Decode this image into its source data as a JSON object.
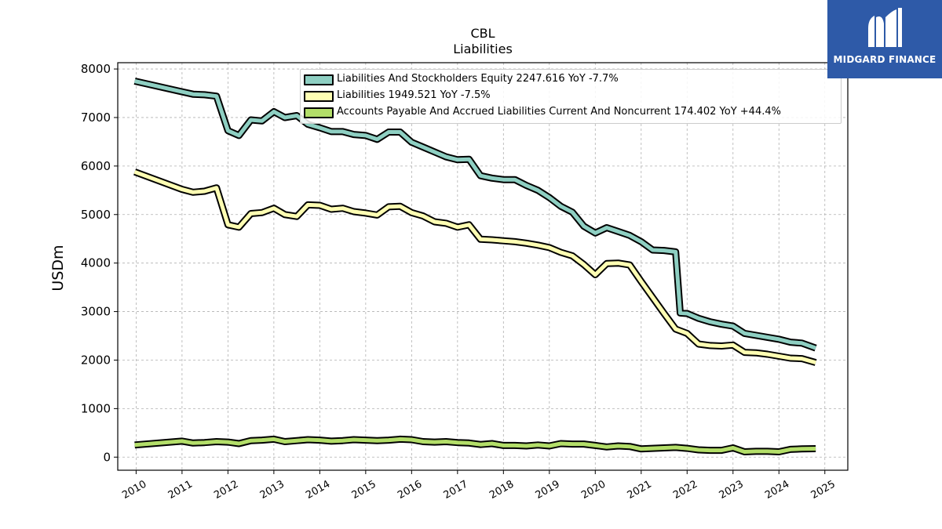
{
  "chart_data": {
    "type": "line",
    "title": "CBL",
    "subtitle": "Liabilities",
    "ylabel": "USDm",
    "xlabel": "",
    "xlim": [
      2009.6,
      2025.5
    ],
    "ylim": [
      -270,
      8130
    ],
    "x_ticks": [
      "2010",
      "2011",
      "2012",
      "2013",
      "2014",
      "2015",
      "2016",
      "2017",
      "2018",
      "2019",
      "2020",
      "2021",
      "2022",
      "2023",
      "2024",
      "2025"
    ],
    "y_ticks": [
      "0",
      "1000",
      "2000",
      "3000",
      "4000",
      "5000",
      "6000",
      "7000",
      "8000"
    ],
    "grid": true,
    "legend_position": "top-right",
    "series": [
      {
        "name": "Liabilities And Stockholders Equity  2247.616 YoY -7.7%",
        "color": "#8ecfc2",
        "points": [
          [
            2009.97,
            7750
          ],
          [
            2011.0,
            7530
          ],
          [
            2011.24,
            7480
          ],
          [
            2011.49,
            7470
          ],
          [
            2011.75,
            7440
          ],
          [
            2012.0,
            6730
          ],
          [
            2012.24,
            6630
          ],
          [
            2012.5,
            6950
          ],
          [
            2012.74,
            6930
          ],
          [
            2013.0,
            7120
          ],
          [
            2013.24,
            7000
          ],
          [
            2013.5,
            7040
          ],
          [
            2013.74,
            6860
          ],
          [
            2014.0,
            6790
          ],
          [
            2014.25,
            6710
          ],
          [
            2014.5,
            6710
          ],
          [
            2014.74,
            6650
          ],
          [
            2015.0,
            6630
          ],
          [
            2015.25,
            6550
          ],
          [
            2015.5,
            6700
          ],
          [
            2015.75,
            6700
          ],
          [
            2016.0,
            6490
          ],
          [
            2016.25,
            6390
          ],
          [
            2016.5,
            6290
          ],
          [
            2016.75,
            6190
          ],
          [
            2017.0,
            6130
          ],
          [
            2017.25,
            6140
          ],
          [
            2017.5,
            5800
          ],
          [
            2017.75,
            5750
          ],
          [
            2018.0,
            5720
          ],
          [
            2018.25,
            5720
          ],
          [
            2018.5,
            5600
          ],
          [
            2018.75,
            5500
          ],
          [
            2019.0,
            5350
          ],
          [
            2019.25,
            5170
          ],
          [
            2019.5,
            5050
          ],
          [
            2019.75,
            4760
          ],
          [
            2020.0,
            4620
          ],
          [
            2020.25,
            4730
          ],
          [
            2020.5,
            4650
          ],
          [
            2020.75,
            4570
          ],
          [
            2021.0,
            4440
          ],
          [
            2021.25,
            4270
          ],
          [
            2021.5,
            4260
          ],
          [
            2021.75,
            4230
          ],
          [
            2021.85,
            2970
          ],
          [
            2022.0,
            2960
          ],
          [
            2022.25,
            2860
          ],
          [
            2022.5,
            2790
          ],
          [
            2022.75,
            2740
          ],
          [
            2023.0,
            2700
          ],
          [
            2023.25,
            2550
          ],
          [
            2023.5,
            2510
          ],
          [
            2023.75,
            2470
          ],
          [
            2024.0,
            2430
          ],
          [
            2024.25,
            2370
          ],
          [
            2024.5,
            2350
          ],
          [
            2024.8,
            2248
          ]
        ]
      },
      {
        "name": "Liabilities  1949.521 YoY -7.5%",
        "color": "#ffffb3",
        "points": [
          [
            2009.97,
            5880
          ],
          [
            2011.0,
            5520
          ],
          [
            2011.24,
            5460
          ],
          [
            2011.49,
            5480
          ],
          [
            2011.75,
            5550
          ],
          [
            2012.0,
            4790
          ],
          [
            2012.24,
            4740
          ],
          [
            2012.5,
            5020
          ],
          [
            2012.74,
            5040
          ],
          [
            2013.0,
            5130
          ],
          [
            2013.24,
            5000
          ],
          [
            2013.5,
            4960
          ],
          [
            2013.74,
            5200
          ],
          [
            2014.0,
            5190
          ],
          [
            2014.25,
            5110
          ],
          [
            2014.5,
            5130
          ],
          [
            2014.74,
            5060
          ],
          [
            2015.0,
            5030
          ],
          [
            2015.25,
            4990
          ],
          [
            2015.5,
            5160
          ],
          [
            2015.75,
            5170
          ],
          [
            2016.0,
            5040
          ],
          [
            2016.25,
            4970
          ],
          [
            2016.5,
            4850
          ],
          [
            2016.75,
            4820
          ],
          [
            2017.0,
            4740
          ],
          [
            2017.25,
            4790
          ],
          [
            2017.5,
            4490
          ],
          [
            2017.75,
            4480
          ],
          [
            2018.0,
            4460
          ],
          [
            2018.25,
            4440
          ],
          [
            2018.5,
            4410
          ],
          [
            2018.75,
            4370
          ],
          [
            2019.0,
            4320
          ],
          [
            2019.25,
            4220
          ],
          [
            2019.5,
            4150
          ],
          [
            2019.75,
            3970
          ],
          [
            2020.0,
            3760
          ],
          [
            2020.25,
            3990
          ],
          [
            2020.5,
            4000
          ],
          [
            2020.75,
            3960
          ],
          [
            2021.0,
            3620
          ],
          [
            2021.25,
            3290
          ],
          [
            2021.5,
            2960
          ],
          [
            2021.75,
            2640
          ],
          [
            2022.0,
            2550
          ],
          [
            2022.25,
            2330
          ],
          [
            2022.5,
            2300
          ],
          [
            2022.75,
            2290
          ],
          [
            2023.0,
            2310
          ],
          [
            2023.25,
            2160
          ],
          [
            2023.5,
            2150
          ],
          [
            2023.75,
            2120
          ],
          [
            2024.0,
            2080
          ],
          [
            2024.25,
            2040
          ],
          [
            2024.5,
            2030
          ],
          [
            2024.8,
            1950
          ]
        ]
      },
      {
        "name": "Accounts Payable And Accrued Liabilities Current And Noncurrent  174.402 YoY +44.4%",
        "color": "#b3de69",
        "points": [
          [
            2009.97,
            250
          ],
          [
            2011.0,
            330
          ],
          [
            2011.24,
            290
          ],
          [
            2011.49,
            300
          ],
          [
            2011.75,
            320
          ],
          [
            2012.0,
            310
          ],
          [
            2012.24,
            280
          ],
          [
            2012.5,
            340
          ],
          [
            2012.74,
            350
          ],
          [
            2013.0,
            370
          ],
          [
            2013.24,
            320
          ],
          [
            2013.5,
            340
          ],
          [
            2013.74,
            360
          ],
          [
            2014.0,
            350
          ],
          [
            2014.25,
            330
          ],
          [
            2014.5,
            340
          ],
          [
            2014.74,
            360
          ],
          [
            2015.0,
            350
          ],
          [
            2015.25,
            340
          ],
          [
            2015.5,
            350
          ],
          [
            2015.75,
            370
          ],
          [
            2016.0,
            360
          ],
          [
            2016.25,
            320
          ],
          [
            2016.5,
            310
          ],
          [
            2016.75,
            320
          ],
          [
            2017.0,
            300
          ],
          [
            2017.25,
            290
          ],
          [
            2017.5,
            260
          ],
          [
            2017.75,
            280
          ],
          [
            2018.0,
            240
          ],
          [
            2018.25,
            240
          ],
          [
            2018.5,
            230
          ],
          [
            2018.75,
            250
          ],
          [
            2019.0,
            230
          ],
          [
            2019.25,
            280
          ],
          [
            2019.5,
            270
          ],
          [
            2019.75,
            270
          ],
          [
            2020.0,
            240
          ],
          [
            2020.25,
            210
          ],
          [
            2020.5,
            230
          ],
          [
            2020.75,
            220
          ],
          [
            2021.0,
            170
          ],
          [
            2021.25,
            180
          ],
          [
            2021.5,
            190
          ],
          [
            2021.75,
            200
          ],
          [
            2022.0,
            180
          ],
          [
            2022.25,
            150
          ],
          [
            2022.5,
            140
          ],
          [
            2022.75,
            140
          ],
          [
            2023.0,
            190
          ],
          [
            2023.25,
            110
          ],
          [
            2023.5,
            120
          ],
          [
            2023.75,
            120
          ],
          [
            2024.0,
            110
          ],
          [
            2024.25,
            160
          ],
          [
            2024.5,
            170
          ],
          [
            2024.8,
            174
          ]
        ]
      }
    ]
  },
  "logo": {
    "text": "MIDGARD FINANCE",
    "icon": "stylized-m-logo-icon",
    "background": "#2e5aa8"
  }
}
